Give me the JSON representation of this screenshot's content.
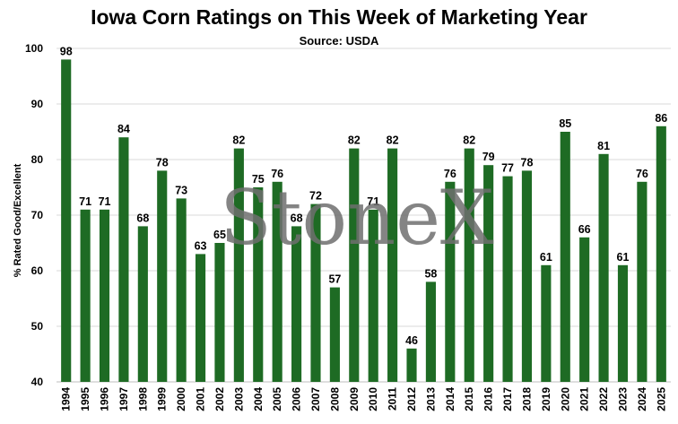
{
  "chart_data": {
    "type": "bar",
    "title": "Iowa Corn Ratings on This Week of Marketing Year",
    "subtitle": "Source: USDA",
    "xlabel": "",
    "ylabel": "% Rated Good/Excellent",
    "ylim": [
      40,
      100
    ],
    "yticks": [
      40,
      50,
      60,
      70,
      80,
      90,
      100
    ],
    "grid": true,
    "categories": [
      "1994",
      "1995",
      "1996",
      "1997",
      "1998",
      "1999",
      "2000",
      "2001",
      "2002",
      "2003",
      "2004",
      "2005",
      "2006",
      "2007",
      "2008",
      "2009",
      "2010",
      "2011",
      "2012",
      "2013",
      "2014",
      "2015",
      "2016",
      "2017",
      "2018",
      "2019",
      "2020",
      "2021",
      "2022",
      "2023",
      "2024",
      "2025"
    ],
    "values": [
      98,
      71,
      71,
      84,
      68,
      78,
      73,
      63,
      65,
      82,
      75,
      76,
      68,
      72,
      57,
      82,
      71,
      82,
      46,
      58,
      76,
      82,
      79,
      77,
      78,
      61,
      85,
      66,
      81,
      61,
      76,
      86
    ],
    "bar_color": "#1e6b24",
    "watermark": "StoneX"
  }
}
